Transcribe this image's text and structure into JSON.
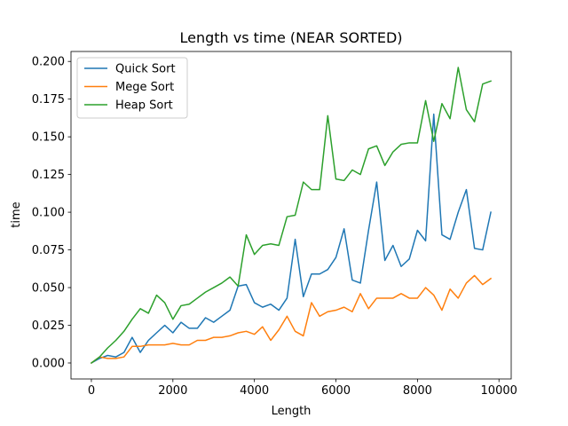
{
  "chart_data": {
    "type": "line",
    "title": "Length vs time (NEAR SORTED)",
    "xlabel": "Length",
    "ylabel": "time",
    "xlim": [
      -500,
      10300
    ],
    "ylim": [
      -0.0106,
      0.2066
    ],
    "x_ticks": [
      0,
      2000,
      4000,
      6000,
      8000,
      10000
    ],
    "x_tick_labels": [
      "0",
      "2000",
      "4000",
      "6000",
      "8000",
      "10000"
    ],
    "y_ticks": [
      0.0,
      0.025,
      0.05,
      0.075,
      0.1,
      0.125,
      0.15,
      0.175,
      0.2
    ],
    "y_tick_labels": [
      "0.000",
      "0.025",
      "0.050",
      "0.075",
      "0.100",
      "0.125",
      "0.150",
      "0.175",
      "0.200"
    ],
    "grid": false,
    "legend_position": "top-left",
    "x": [
      0,
      200,
      400,
      600,
      800,
      1000,
      1200,
      1400,
      1600,
      1800,
      2000,
      2200,
      2400,
      2600,
      2800,
      3000,
      3200,
      3400,
      3600,
      3800,
      4000,
      4200,
      4400,
      4600,
      4800,
      5000,
      5200,
      5400,
      5600,
      5800,
      6000,
      6200,
      6400,
      6600,
      6800,
      7000,
      7200,
      7400,
      7600,
      7800,
      8000,
      8200,
      8400,
      8600,
      8800,
      9000,
      9200,
      9400,
      9600,
      9800
    ],
    "series": [
      {
        "name": "Quick Sort",
        "color": "#1f77b4",
        "values": [
          0.0,
          0.003,
          0.005,
          0.004,
          0.007,
          0.017,
          0.007,
          0.015,
          0.02,
          0.025,
          0.02,
          0.027,
          0.023,
          0.023,
          0.03,
          0.027,
          0.031,
          0.035,
          0.051,
          0.052,
          0.04,
          0.037,
          0.039,
          0.035,
          0.043,
          0.082,
          0.044,
          0.059,
          0.059,
          0.062,
          0.07,
          0.089,
          0.055,
          0.053,
          0.088,
          0.12,
          0.068,
          0.078,
          0.064,
          0.069,
          0.088,
          0.081,
          0.165,
          0.085,
          0.082,
          0.1,
          0.115,
          0.076,
          0.075,
          0.1
        ]
      },
      {
        "name": "Mege Sort",
        "color": "#ff7f0e",
        "values": [
          0.0,
          0.004,
          0.003,
          0.003,
          0.004,
          0.011,
          0.011,
          0.012,
          0.012,
          0.012,
          0.013,
          0.012,
          0.012,
          0.015,
          0.015,
          0.017,
          0.017,
          0.018,
          0.02,
          0.021,
          0.019,
          0.024,
          0.015,
          0.022,
          0.031,
          0.021,
          0.018,
          0.04,
          0.031,
          0.034,
          0.035,
          0.037,
          0.034,
          0.046,
          0.036,
          0.043,
          0.043,
          0.043,
          0.046,
          0.043,
          0.043,
          0.05,
          0.045,
          0.035,
          0.049,
          0.043,
          0.053,
          0.058,
          0.052,
          0.056
        ]
      },
      {
        "name": "Heap Sort",
        "color": "#2ca02c",
        "values": [
          0.0,
          0.004,
          0.01,
          0.015,
          0.021,
          0.029,
          0.036,
          0.033,
          0.045,
          0.04,
          0.029,
          0.038,
          0.039,
          0.043,
          0.047,
          0.05,
          0.053,
          0.057,
          0.051,
          0.085,
          0.072,
          0.078,
          0.079,
          0.078,
          0.097,
          0.098,
          0.12,
          0.115,
          0.115,
          0.164,
          0.122,
          0.121,
          0.128,
          0.125,
          0.142,
          0.144,
          0.131,
          0.14,
          0.145,
          0.146,
          0.146,
          0.174,
          0.147,
          0.172,
          0.162,
          0.196,
          0.168,
          0.16,
          0.185,
          0.187
        ]
      }
    ]
  }
}
